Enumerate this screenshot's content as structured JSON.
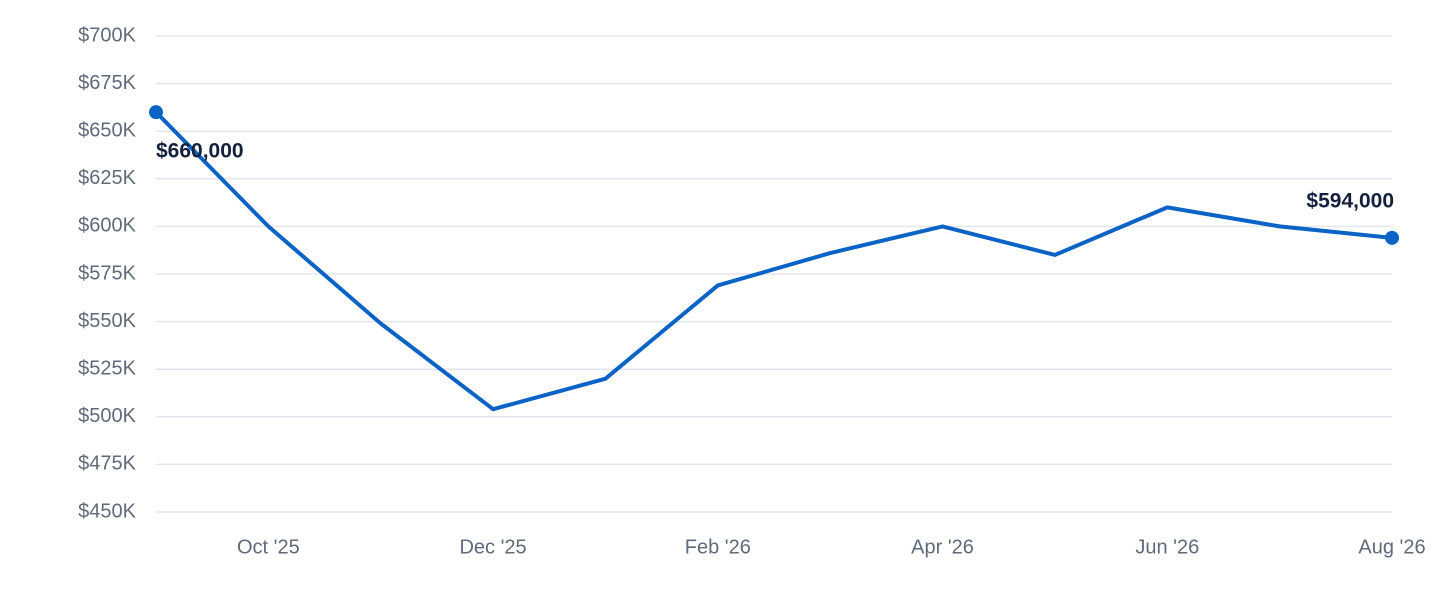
{
  "chart_data": {
    "type": "line",
    "categories": [
      null,
      "Oct '25",
      null,
      "Dec '25",
      null,
      "Feb '26",
      null,
      "Apr '26",
      null,
      "Jun '26",
      null,
      "Aug '26"
    ],
    "series": [
      {
        "color": "#0b63c5",
        "values": [
          660000,
          600000,
          549000,
          504000,
          520000,
          569000,
          586000,
          600000,
          585000,
          610000,
          600000,
          594000
        ],
        "value_labels": [
          "$660,000",
          null,
          null,
          null,
          null,
          null,
          null,
          null,
          null,
          null,
          null,
          "$594,000"
        ]
      }
    ],
    "ylim": [
      450000,
      700000
    ],
    "yticks": [
      {
        "value": 450000,
        "label": "$450K"
      },
      {
        "value": 475000,
        "label": "$475K"
      },
      {
        "value": 500000,
        "label": "$500K"
      },
      {
        "value": 525000,
        "label": "$525K"
      },
      {
        "value": 550000,
        "label": "$550K"
      },
      {
        "value": 575000,
        "label": "$575K"
      },
      {
        "value": 600000,
        "label": "$600K"
      },
      {
        "value": 625000,
        "label": "$625K"
      },
      {
        "value": 650000,
        "label": "$650K"
      },
      {
        "value": 675000,
        "label": "$675K"
      },
      {
        "value": 700000,
        "label": "$700K"
      }
    ],
    "grid": true
  }
}
